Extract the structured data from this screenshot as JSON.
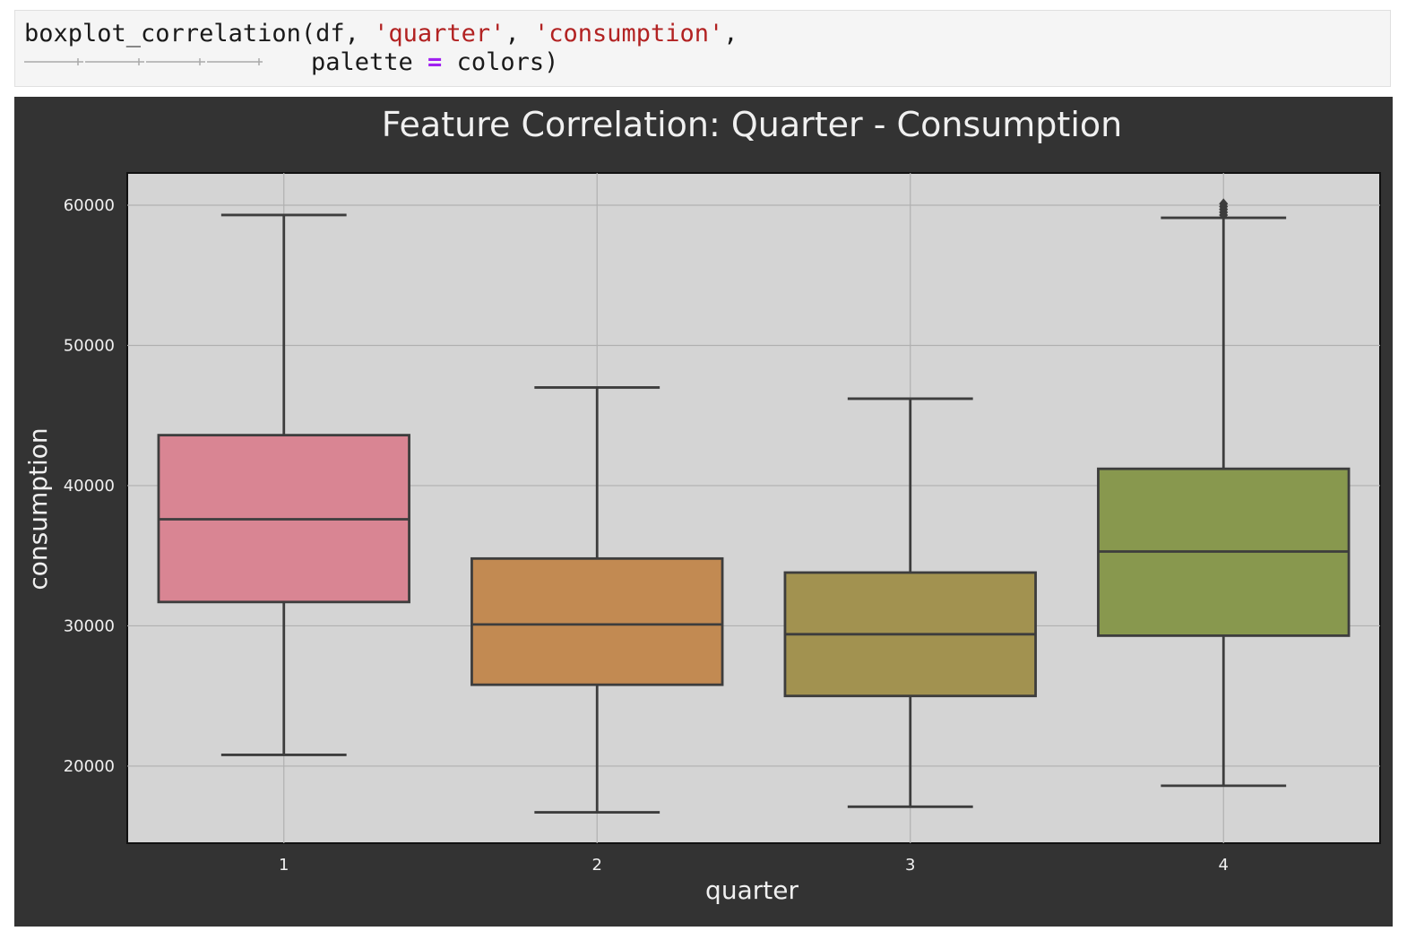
{
  "code": {
    "line1_prefix": "boxplot_correlation(df, ",
    "arg1": "'quarter'",
    "sep": ", ",
    "arg2": "'consumption'",
    "line1_suffix": ",",
    "line2_prefix": "palette ",
    "line2_op": "=",
    "line2_suffix": " colors)"
  },
  "colors": {
    "figure_bg": "#333333",
    "plot_bg": "#d4d4d4",
    "grid": "#b0b0b0",
    "box_line": "#3d3d3d",
    "text": "#f0f0f0"
  },
  "chart_data": {
    "type": "box",
    "title": "Feature Correlation: Quarter - Consumption",
    "xlabel": "quarter",
    "ylabel": "consumption",
    "ylim": [
      14500,
      62300
    ],
    "yticks": [
      20000,
      30000,
      40000,
      50000,
      60000
    ],
    "grid": true,
    "categories": [
      "1",
      "2",
      "3",
      "4"
    ],
    "boxes": [
      {
        "category": "1",
        "whisker_low": 20800,
        "q1": 31700,
        "median": 37600,
        "q3": 43600,
        "whisker_high": 59300,
        "color": "#d98593",
        "outliers": []
      },
      {
        "category": "2",
        "whisker_low": 16700,
        "q1": 25800,
        "median": 30100,
        "q3": 34800,
        "whisker_high": 47000,
        "color": "#c28a52",
        "outliers": []
      },
      {
        "category": "3",
        "whisker_low": 17100,
        "q1": 25000,
        "median": 29400,
        "q3": 33800,
        "whisker_high": 46200,
        "color": "#a29250",
        "outliers": []
      },
      {
        "category": "4",
        "whisker_low": 18600,
        "q1": 29300,
        "median": 35300,
        "q3": 41200,
        "whisker_high": 59100,
        "color": "#88984e",
        "outliers": [
          59300,
          59500,
          59700,
          59900,
          60100
        ]
      }
    ]
  }
}
